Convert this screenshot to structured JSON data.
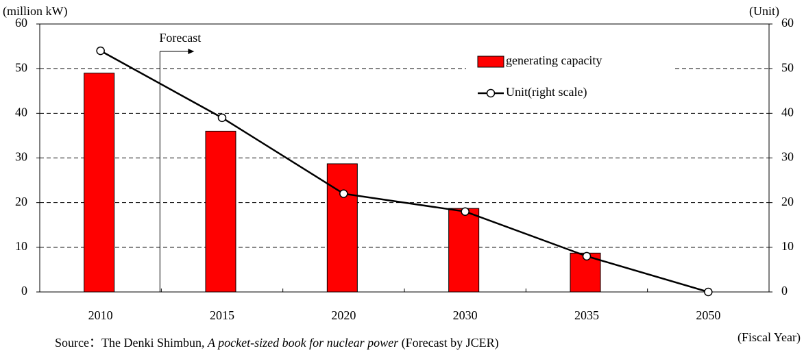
{
  "chart_data": {
    "type": "bar_line",
    "y_label": "(million kW)",
    "y2_label": "(Unit)",
    "x_label": "(Fiscal Year)",
    "annotation": "Forecast",
    "source": {
      "prefix": "Source：The Denki Shimbun, ",
      "italic": "A pocket-sized book for nuclear power",
      "suffix": " (Forecast by JCER)"
    },
    "categories": [
      "2010",
      "2015",
      "2020",
      "2030",
      "2035",
      "2050"
    ],
    "series": [
      {
        "name": "generating capacity",
        "type": "bar",
        "color": "#ff0000",
        "values": [
          49,
          36,
          28.7,
          18.7,
          8.7,
          0
        ]
      },
      {
        "name": "Unit(right scale)",
        "type": "line",
        "axis": "y2",
        "color": "#000000",
        "values": [
          54,
          39,
          22,
          18,
          8,
          0
        ]
      }
    ],
    "ylim": [
      0,
      60
    ],
    "yticks": [
      0,
      10,
      20,
      30,
      40,
      50,
      60
    ],
    "y2lim": [
      0,
      60
    ],
    "y2ticks": [
      0,
      10,
      20,
      30,
      40,
      50,
      60
    ],
    "grid": true
  }
}
